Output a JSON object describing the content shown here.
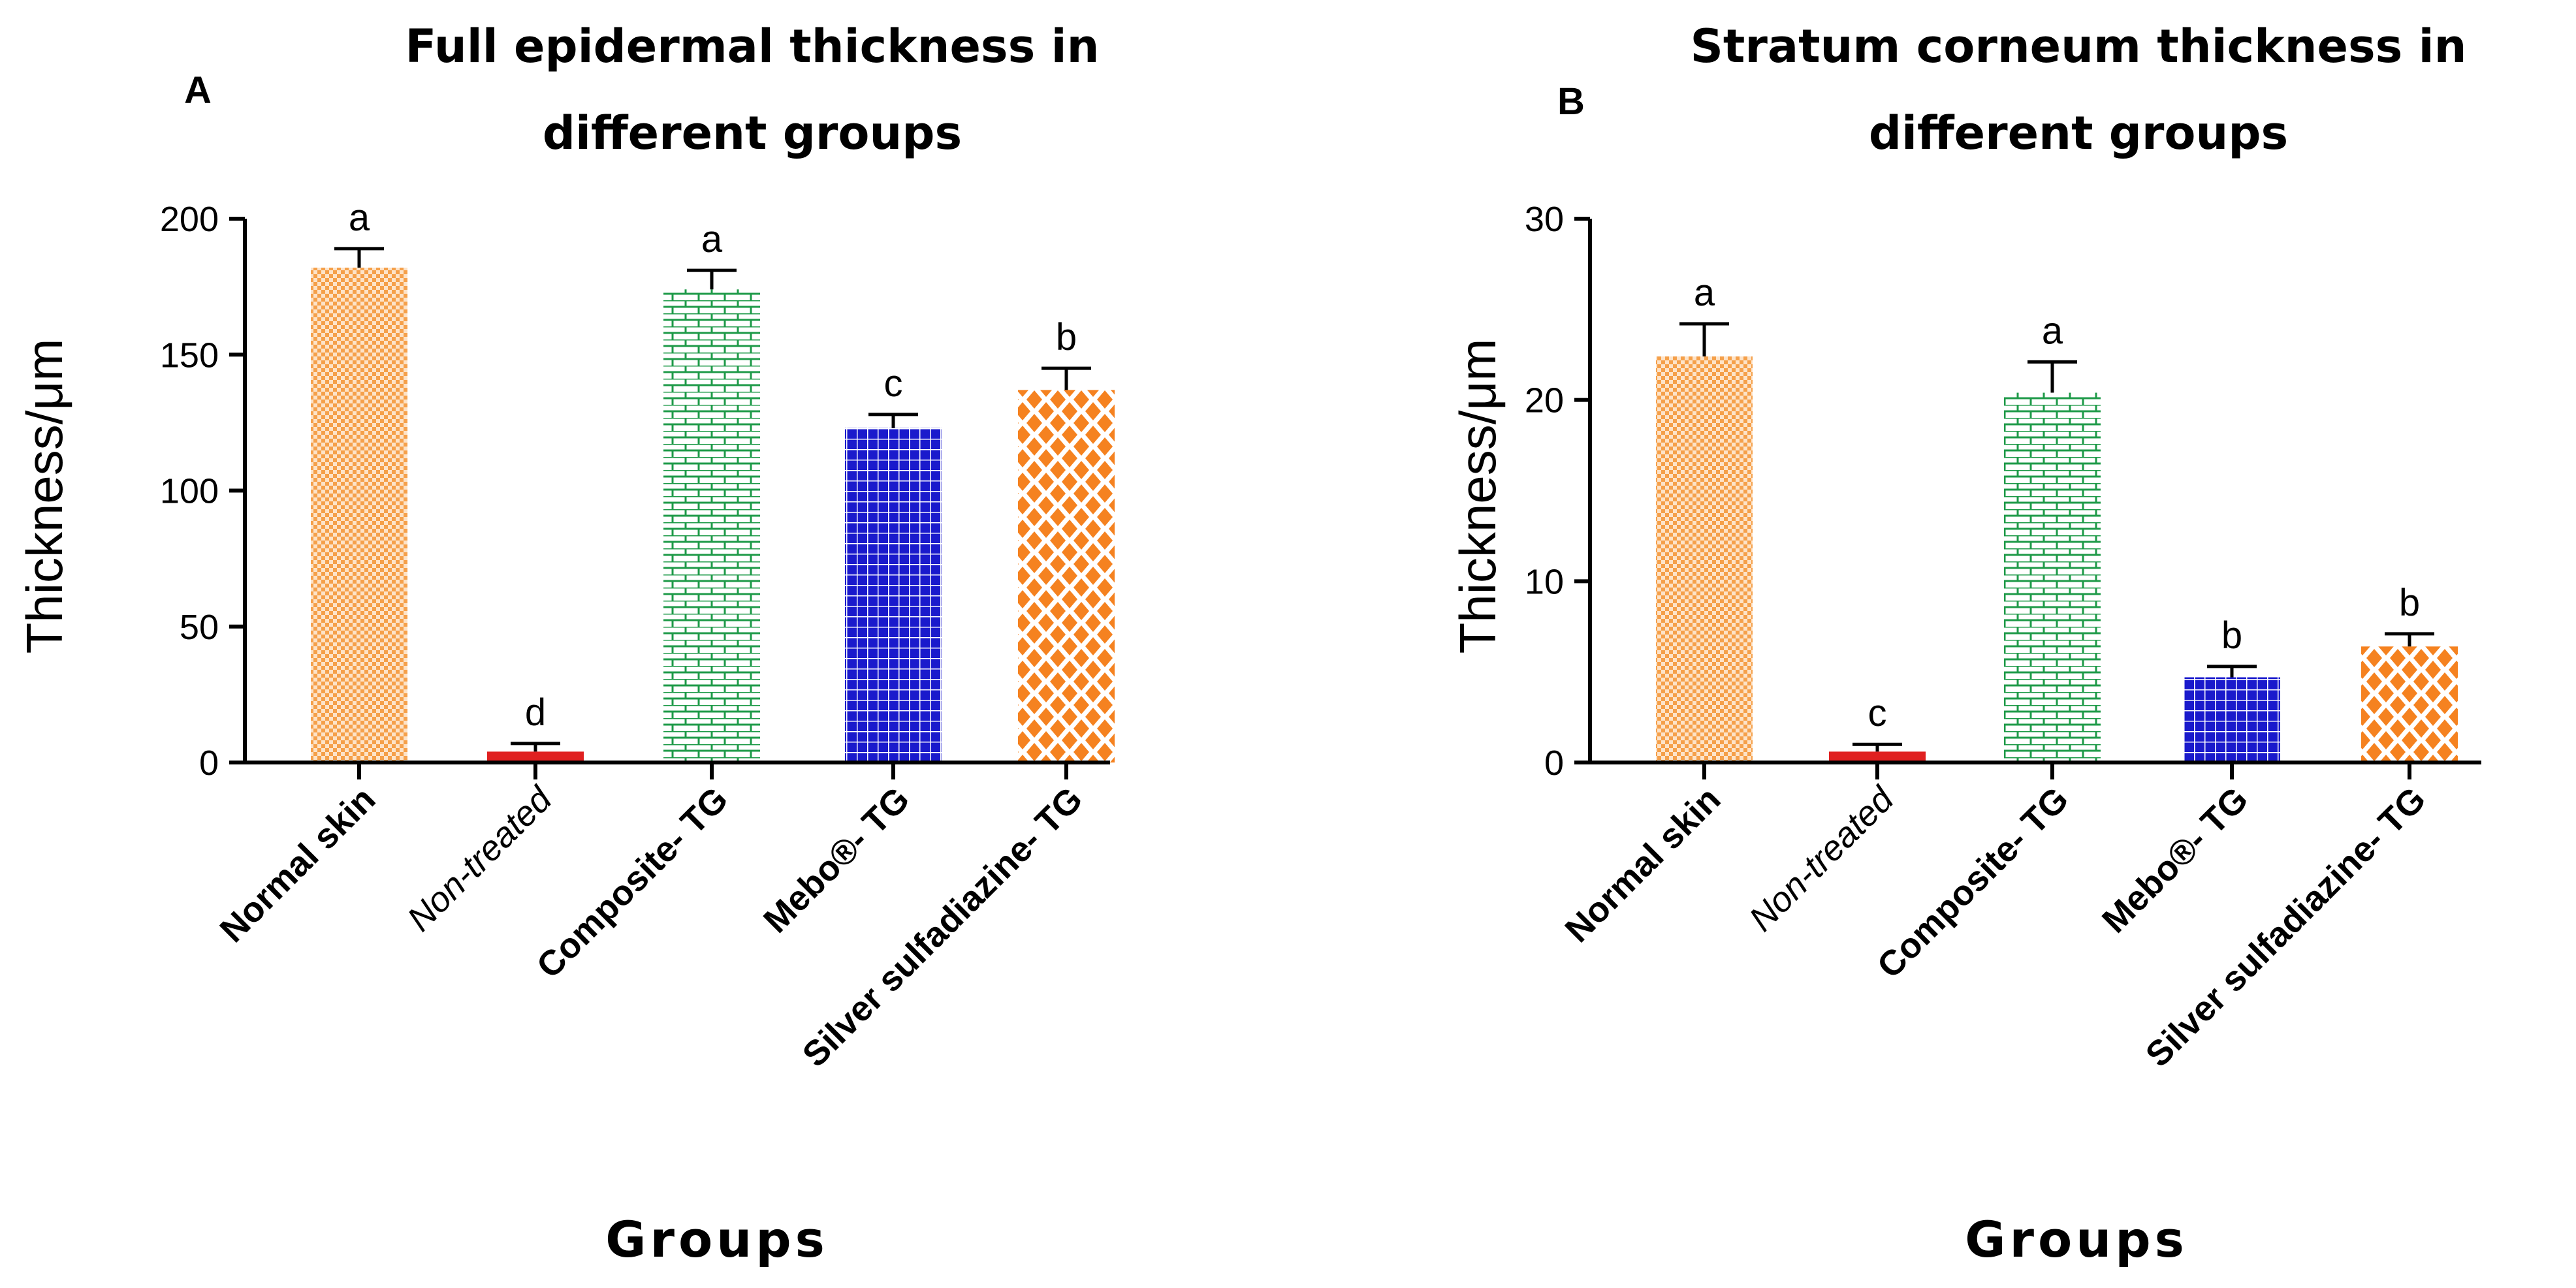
{
  "chart_data": [
    {
      "type": "bar",
      "panel": "A",
      "title": "Full epidermal thickness in different groups",
      "title_lines": [
        "Full epidermal thickness in",
        "different groups"
      ],
      "xlabel": "Groups",
      "ylabel": "Thickness/μm",
      "ylim": [
        0,
        200
      ],
      "yticks": [
        0,
        50,
        100,
        150,
        200
      ],
      "grid": false,
      "categories": [
        "Normal skin",
        "Non-treated",
        "Composite- TG",
        "Mebo®- TG",
        "Silver sulfadiazine- TG"
      ],
      "values": [
        182,
        4,
        174,
        123,
        137
      ],
      "errors": [
        7,
        3,
        7,
        5,
        8
      ],
      "significance": [
        "a",
        "d",
        "a",
        "c",
        "b"
      ]
    },
    {
      "type": "bar",
      "panel": "B",
      "title": "Stratum corneum thickness in different groups",
      "title_lines": [
        "Stratum corneum thickness in",
        "different groups"
      ],
      "xlabel": "Groups",
      "ylabel": "Thickness/μm",
      "ylim": [
        0,
        30
      ],
      "yticks": [
        0,
        10,
        20,
        30
      ],
      "grid": false,
      "categories": [
        "Normal skin",
        "Non-treated",
        "Composite- TG",
        "Mebo®- TG",
        "Silver sulfadiazine- TG"
      ],
      "values": [
        22.4,
        0.6,
        20.4,
        4.7,
        6.4
      ],
      "errors": [
        1.8,
        0.4,
        1.7,
        0.6,
        0.7
      ],
      "significance": [
        "a",
        "c",
        "a",
        "b",
        "b"
      ]
    }
  ],
  "series_styles": [
    {
      "name": "Normal skin",
      "pattern": "fine-check",
      "color": "#F5A04A",
      "bg": "#FDE3C8"
    },
    {
      "name": "Non-treated",
      "pattern": "solid",
      "color": "#E02020",
      "bg": "#E02020"
    },
    {
      "name": "Composite- TG",
      "pattern": "brick",
      "color": "#1E9A48",
      "bg": "#FFFFFF"
    },
    {
      "name": "Mebo®- TG",
      "pattern": "grid",
      "color": "#FFFFFF",
      "bg": "#1A1ACC"
    },
    {
      "name": "Silver sulfadiazine- TG",
      "pattern": "diamond",
      "color": "#F58220",
      "bg": "#FFFFFF"
    }
  ]
}
